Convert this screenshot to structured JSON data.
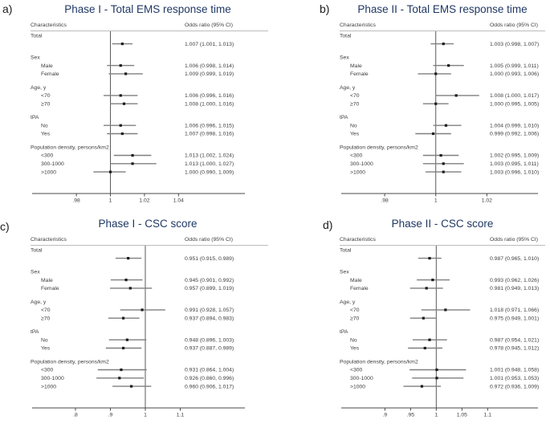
{
  "chart_data": [
    {
      "type": "forest",
      "panel_label": "a)",
      "title": "Phase I - Total EMS response time",
      "col_headers": [
        "Characteristics",
        "Odds ratio (95% CI)"
      ],
      "axis": {
        "xlim": [
          0.954,
          1.079
        ],
        "ref_value": 1,
        "ticks": [
          {
            "v": 0.98,
            "label": ".98"
          },
          {
            "v": 1.0,
            "label": "1"
          },
          {
            "v": 1.02,
            "label": "1.02"
          },
          {
            "v": 1.04,
            "label": "1.04"
          }
        ]
      },
      "rows": [
        {
          "type": "group",
          "label": "Total"
        },
        {
          "type": "estimate",
          "label": "",
          "or": 1.007,
          "lo": 1.001,
          "hi": 1.013,
          "text": "1.007 (1.001, 1.013)"
        },
        {
          "type": "spacer"
        },
        {
          "type": "group",
          "label": "Sex"
        },
        {
          "type": "estimate",
          "label": "Male",
          "or": 1.006,
          "lo": 0.998,
          "hi": 1.014,
          "text": "1.006 (0.998, 1.014)"
        },
        {
          "type": "estimate",
          "label": "Female",
          "or": 1.009,
          "lo": 0.999,
          "hi": 1.019,
          "text": "1.009 (0.999, 1.019)"
        },
        {
          "type": "spacer"
        },
        {
          "type": "group",
          "label": "Age, y"
        },
        {
          "type": "estimate",
          "label": "<70",
          "or": 1.006,
          "lo": 0.996,
          "hi": 1.016,
          "text": "1.006 (0.996, 1.016)"
        },
        {
          "type": "estimate",
          "label": "≥70",
          "or": 1.008,
          "lo": 1.0,
          "hi": 1.016,
          "text": "1.008 (1.000, 1.016)"
        },
        {
          "type": "spacer"
        },
        {
          "type": "group",
          "label": "tPA"
        },
        {
          "type": "estimate",
          "label": "No",
          "or": 1.006,
          "lo": 0.996,
          "hi": 1.015,
          "text": "1.006 (0.996, 1.015)"
        },
        {
          "type": "estimate",
          "label": "Yes",
          "or": 1.007,
          "lo": 0.998,
          "hi": 1.016,
          "text": "1.007 (0.998, 1.016)"
        },
        {
          "type": "spacer"
        },
        {
          "type": "group",
          "label": "Population density, persons/km2"
        },
        {
          "type": "estimate",
          "label": "<300",
          "or": 1.013,
          "lo": 1.002,
          "hi": 1.024,
          "text": "1.013 (1.002, 1.024)"
        },
        {
          "type": "estimate",
          "label": "300-1000",
          "or": 1.013,
          "lo": 1.0,
          "hi": 1.027,
          "text": "1.013 (1.000, 1.027)"
        },
        {
          "type": "estimate",
          "label": ">1000",
          "or": 1.0,
          "lo": 0.99,
          "hi": 1.009,
          "text": "1.000 (0.990, 1.009)"
        }
      ]
    },
    {
      "type": "forest",
      "panel_label": "b)",
      "title": "Phase II - Total EMS response time",
      "col_headers": [
        "Characteristics",
        "Odds ratio (95% CI)"
      ],
      "axis": {
        "xlim": [
          0.963,
          1.04
        ],
        "ref_value": 1,
        "ticks": [
          {
            "v": 0.98,
            "label": ".98"
          },
          {
            "v": 1.0,
            "label": "1"
          },
          {
            "v": 1.02,
            "label": "1.02"
          }
        ]
      },
      "rows": [
        {
          "type": "group",
          "label": "Total"
        },
        {
          "type": "estimate",
          "label": "",
          "or": 1.003,
          "lo": 0.998,
          "hi": 1.007,
          "text": "1.003 (0.998, 1.007)"
        },
        {
          "type": "spacer"
        },
        {
          "type": "group",
          "label": "Sex"
        },
        {
          "type": "estimate",
          "label": "Male",
          "or": 1.005,
          "lo": 0.999,
          "hi": 1.011,
          "text": "1.005 (0.999, 1.011)"
        },
        {
          "type": "estimate",
          "label": "Female",
          "or": 1.0,
          "lo": 0.993,
          "hi": 1.006,
          "text": "1.000 (0.993, 1.006)"
        },
        {
          "type": "spacer"
        },
        {
          "type": "group",
          "label": "Age, y"
        },
        {
          "type": "estimate",
          "label": "<70",
          "or": 1.008,
          "lo": 1.0,
          "hi": 1.017,
          "text": "1.008 (1.000, 1.017)"
        },
        {
          "type": "estimate",
          "label": "≥70",
          "or": 1.0,
          "lo": 0.995,
          "hi": 1.005,
          "text": "1.000 (0.995, 1.005)"
        },
        {
          "type": "spacer"
        },
        {
          "type": "group",
          "label": "tPA"
        },
        {
          "type": "estimate",
          "label": "No",
          "or": 1.004,
          "lo": 0.999,
          "hi": 1.01,
          "text": "1.004 (0.999, 1.010)"
        },
        {
          "type": "estimate",
          "label": "Yes",
          "or": 0.999,
          "lo": 0.992,
          "hi": 1.006,
          "text": "0.999 (0.992, 1.006)"
        },
        {
          "type": "spacer"
        },
        {
          "type": "group",
          "label": "Population density, persons/km2"
        },
        {
          "type": "estimate",
          "label": "<300",
          "or": 1.002,
          "lo": 0.995,
          "hi": 1.009,
          "text": "1.002 (0.995, 1.009)"
        },
        {
          "type": "estimate",
          "label": "300-1000",
          "or": 1.003,
          "lo": 0.995,
          "hi": 1.011,
          "text": "1.003 (0.995, 1.011)"
        },
        {
          "type": "estimate",
          "label": ">1000",
          "or": 1.003,
          "lo": 0.996,
          "hi": 1.01,
          "text": "1.003 (0.996, 1.010)"
        }
      ]
    },
    {
      "type": "forest",
      "panel_label": "c)",
      "title": "Phase I - CSC score",
      "col_headers": [
        "Characteristics",
        "Odds ratio (95% CI)"
      ],
      "axis": {
        "xlim": [
          0.676,
          1.285
        ],
        "ref_value": 1,
        "ticks": [
          {
            "v": 0.8,
            "label": ".8"
          },
          {
            "v": 0.9,
            "label": ".9"
          },
          {
            "v": 1.0,
            "label": "1"
          },
          {
            "v": 1.1,
            "label": "1.1"
          }
        ]
      },
      "rows": [
        {
          "type": "group",
          "label": "Total"
        },
        {
          "type": "estimate",
          "label": "",
          "or": 0.951,
          "lo": 0.915,
          "hi": 0.989,
          "text": "0.951 (0.915, 0.989)"
        },
        {
          "type": "spacer"
        },
        {
          "type": "group",
          "label": "Sex"
        },
        {
          "type": "estimate",
          "label": "Male",
          "or": 0.945,
          "lo": 0.901,
          "hi": 0.992,
          "text": "0.945 (0.901, 0.992)"
        },
        {
          "type": "estimate",
          "label": "Female",
          "or": 0.957,
          "lo": 0.899,
          "hi": 1.019,
          "text": "0.957 (0.899, 1.019)"
        },
        {
          "type": "spacer"
        },
        {
          "type": "group",
          "label": "Age, y"
        },
        {
          "type": "estimate",
          "label": "<70",
          "or": 0.991,
          "lo": 0.928,
          "hi": 1.057,
          "text": "0.991 (0.928, 1.057)"
        },
        {
          "type": "estimate",
          "label": "≥70",
          "or": 0.937,
          "lo": 0.894,
          "hi": 0.983,
          "text": "0.937 (0.894, 0.983)"
        },
        {
          "type": "spacer"
        },
        {
          "type": "group",
          "label": "tPA"
        },
        {
          "type": "estimate",
          "label": "No",
          "or": 0.948,
          "lo": 0.896,
          "hi": 1.003,
          "text": "0.948 (0.896, 1.003)"
        },
        {
          "type": "estimate",
          "label": "Yes",
          "or": 0.937,
          "lo": 0.887,
          "hi": 0.989,
          "text": "0.937 (0.887, 0.989)"
        },
        {
          "type": "spacer"
        },
        {
          "type": "group",
          "label": "Population density, persons/km2"
        },
        {
          "type": "estimate",
          "label": "<300",
          "or": 0.931,
          "lo": 0.864,
          "hi": 1.004,
          "text": "0.931 (0.864, 1.004)"
        },
        {
          "type": "estimate",
          "label": "300-1000",
          "or": 0.926,
          "lo": 0.86,
          "hi": 0.996,
          "text": "0.926 (0.860, 0.996)"
        },
        {
          "type": "estimate",
          "label": ">1000",
          "or": 0.96,
          "lo": 0.906,
          "hi": 1.017,
          "text": "0.960 (0.906, 1.017)"
        }
      ]
    },
    {
      "type": "forest",
      "panel_label": "d)",
      "title": "Phase II - CSC score",
      "col_headers": [
        "Characteristics",
        "Odds ratio (95% CI)"
      ],
      "axis": {
        "xlim": [
          0.815,
          1.198
        ],
        "ref_value": 1,
        "ticks": [
          {
            "v": 0.9,
            "label": ".9"
          },
          {
            "v": 0.95,
            "label": ".95"
          },
          {
            "v": 1.0,
            "label": "1"
          },
          {
            "v": 1.05,
            "label": "1.05"
          },
          {
            "v": 1.1,
            "label": "1.1"
          }
        ]
      },
      "rows": [
        {
          "type": "group",
          "label": "Total"
        },
        {
          "type": "estimate",
          "label": "",
          "or": 0.987,
          "lo": 0.965,
          "hi": 1.01,
          "text": "0.987 (0.965, 1.010)"
        },
        {
          "type": "spacer"
        },
        {
          "type": "group",
          "label": "Sex"
        },
        {
          "type": "estimate",
          "label": "Male",
          "or": 0.993,
          "lo": 0.962,
          "hi": 1.026,
          "text": "0.993 (0.962, 1.026)"
        },
        {
          "type": "estimate",
          "label": "Female",
          "or": 0.981,
          "lo": 0.949,
          "hi": 1.013,
          "text": "0.981 (0.949, 1.013)"
        },
        {
          "type": "spacer"
        },
        {
          "type": "group",
          "label": "Age, y"
        },
        {
          "type": "estimate",
          "label": "<70",
          "or": 1.018,
          "lo": 0.971,
          "hi": 1.066,
          "text": "1.018 (0.971, 1.066)"
        },
        {
          "type": "estimate",
          "label": "≥70",
          "or": 0.975,
          "lo": 0.949,
          "hi": 1.001,
          "text": "0.975 (0.949, 1.001)"
        },
        {
          "type": "spacer"
        },
        {
          "type": "group",
          "label": "tPA"
        },
        {
          "type": "estimate",
          "label": "No",
          "or": 0.987,
          "lo": 0.954,
          "hi": 1.021,
          "text": "0.987 (0.954, 1.021)"
        },
        {
          "type": "estimate",
          "label": "Yes",
          "or": 0.978,
          "lo": 0.945,
          "hi": 1.012,
          "text": "0.978 (0.945, 1.012)"
        },
        {
          "type": "spacer"
        },
        {
          "type": "group",
          "label": "Population density, persons/km2"
        },
        {
          "type": "estimate",
          "label": "<300",
          "or": 1.001,
          "lo": 0.948,
          "hi": 1.058,
          "text": "1.001 (0.948, 1.058)"
        },
        {
          "type": "estimate",
          "label": "300-1000",
          "or": 1.001,
          "lo": 0.953,
          "hi": 1.053,
          "text": "1.001 (0.953, 1.053)"
        },
        {
          "type": "estimate",
          "label": ">1000",
          "or": 0.972,
          "lo": 0.936,
          "hi": 1.009,
          "text": "0.972 (0.936, 1.009)"
        }
      ]
    }
  ]
}
